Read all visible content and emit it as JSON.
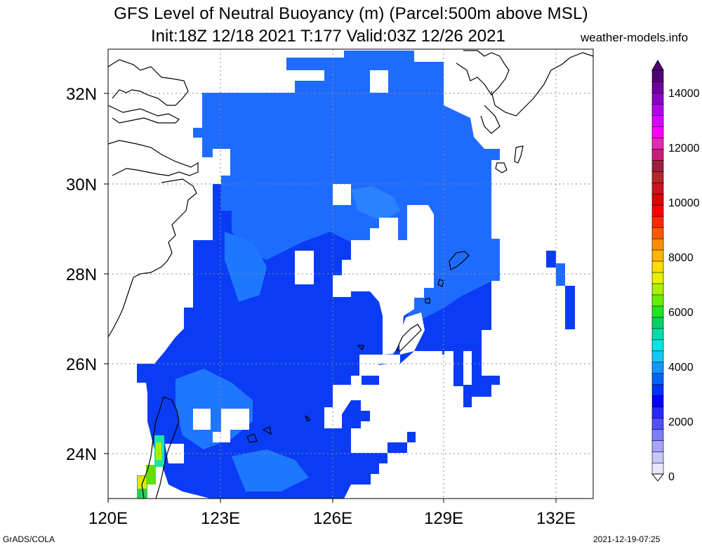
{
  "title_line1": "GFS Level of Neutral Buoyancy (m) (Parcel:500m above MSL)",
  "title_line2": "Init:18Z 12/18 2021 T:177 Valid:03Z 12/26 2021",
  "brand": "weather-models.info",
  "footer_left": "GrADS/COLA",
  "footer_right": "2021-12-19-07:25",
  "map": {
    "lon_range": [
      120,
      133
    ],
    "lat_range": [
      23,
      33
    ],
    "lat_labels": [
      "32N",
      "30N",
      "28N",
      "26N",
      "24N"
    ],
    "lon_labels": [
      "120E",
      "123E",
      "126E",
      "129E",
      "132E"
    ],
    "gridlines": "dotted"
  },
  "colorbar": {
    "labels": [
      "0",
      "2000",
      "4000",
      "6000",
      "8000",
      "10000",
      "12000",
      "14000"
    ],
    "range": [
      0,
      15000
    ],
    "colors": [
      "#e6e6ff",
      "#c8c8ff",
      "#a5a5ff",
      "#7d7dff",
      "#5050ff",
      "#2828ff",
      "#0000ff",
      "#0032ff",
      "#0064ff",
      "#1496ff",
      "#14c8ff",
      "#00e6e6",
      "#00dcaa",
      "#00d264",
      "#1ee61e",
      "#64f000",
      "#aaf000",
      "#e6f000",
      "#ffdc00",
      "#ffb400",
      "#ff8c00",
      "#ff5a00",
      "#ff2800",
      "#ff0000",
      "#dc0000",
      "#c8141e",
      "#b42828",
      "#a01e3c",
      "#c81e78",
      "#e628b4",
      "#ff00ff",
      "#dc00ff",
      "#b400e6",
      "#8c00c8",
      "#6e00a0",
      "#500078"
    ]
  }
}
